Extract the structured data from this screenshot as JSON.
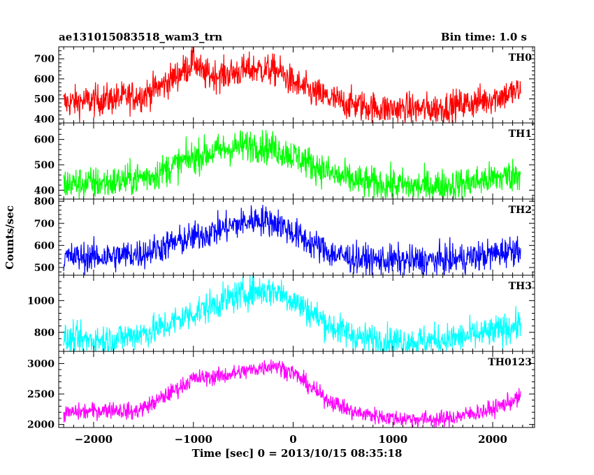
{
  "chart_data": {
    "type": "line",
    "title": "ae131015083518_wam3_trn",
    "subtitle": "Bin time: 1.0 s",
    "xlabel": "Time [sec] 0 = 2013/10/15 08:35:18",
    "ylabel": "Counts/sec",
    "xlim": [
      -2350,
      2420
    ],
    "x_ticks": [
      -2000,
      -1000,
      0,
      1000,
      2000
    ],
    "x_tick_labels": [
      "−2000",
      "−1000",
      "0",
      "1000",
      "2000"
    ],
    "grid": false,
    "panels": [
      {
        "name": "TH0",
        "color": "#ff0000",
        "ylim": [
          380,
          760
        ],
        "y_ticks": [
          400,
          500,
          600,
          700
        ],
        "noise": 40,
        "x": [
          -2300,
          -1800,
          -1500,
          -1300,
          -1050,
          -1000,
          -900,
          -700,
          -400,
          -150,
          0,
          200,
          500,
          900,
          1400,
          1800,
          2280
        ],
        "y": [
          480,
          500,
          520,
          570,
          660,
          700,
          620,
          620,
          650,
          640,
          580,
          530,
          480,
          450,
          450,
          480,
          540
        ]
      },
      {
        "name": "TH1",
        "color": "#00ff00",
        "ylim": [
          365,
          665
        ],
        "y_ticks": [
          400,
          500,
          600
        ],
        "noise": 33,
        "x": [
          -2300,
          -1800,
          -1400,
          -1000,
          -700,
          -400,
          -150,
          100,
          400,
          700,
          1200,
          1600,
          2000,
          2280
        ],
        "y": [
          425,
          430,
          460,
          530,
          560,
          580,
          560,
          520,
          460,
          430,
          415,
          420,
          445,
          465
        ]
      },
      {
        "name": "TH2",
        "color": "#0000ff",
        "ylim": [
          465,
          810
        ],
        "y_ticks": [
          500,
          600,
          700,
          800
        ],
        "noise": 35,
        "x": [
          -2300,
          -1800,
          -1500,
          -1200,
          -900,
          -600,
          -350,
          -150,
          100,
          400,
          700,
          1200,
          1600,
          2000,
          2280
        ],
        "y": [
          545,
          550,
          565,
          610,
          650,
          690,
          720,
          700,
          630,
          560,
          535,
          530,
          535,
          560,
          590
        ]
      },
      {
        "name": "TH3",
        "color": "#00ffff",
        "ylim": [
          680,
          1160
        ],
        "y_ticks": [
          800,
          1000
        ],
        "noise": 50,
        "x": [
          -2300,
          -1800,
          -1400,
          -1000,
          -700,
          -400,
          -150,
          100,
          400,
          700,
          1200,
          1600,
          2000,
          2280
        ],
        "y": [
          750,
          755,
          810,
          920,
          1000,
          1060,
          1060,
          960,
          830,
          760,
          740,
          760,
          800,
          850
        ]
      },
      {
        "name": "TH0123",
        "color": "#ff00ff",
        "ylim": [
          1950,
          3200
        ],
        "y_ticks": [
          2000,
          2500,
          3000
        ],
        "noise": 70,
        "x": [
          -2300,
          -1800,
          -1600,
          -1400,
          -1000,
          -700,
          -400,
          -200,
          0,
          300,
          600,
          1000,
          1500,
          2000,
          2280
        ],
        "y": [
          2180,
          2250,
          2200,
          2350,
          2750,
          2800,
          2900,
          2980,
          2850,
          2450,
          2200,
          2100,
          2080,
          2250,
          2450
        ]
      }
    ]
  }
}
